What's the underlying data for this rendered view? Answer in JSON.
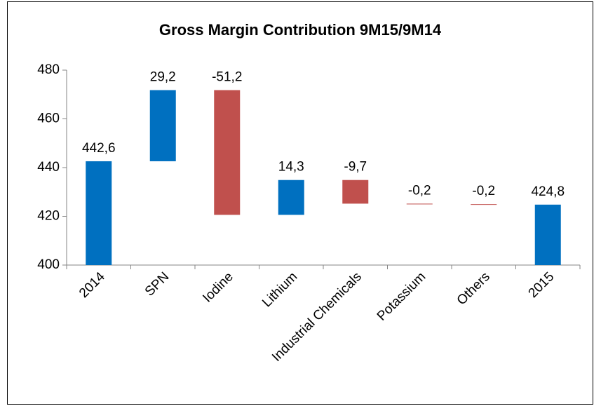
{
  "chart_data": {
    "type": "waterfall",
    "title": "Gross Margin Contribution 9M15/9M14",
    "categories": [
      "2014",
      "SPN",
      "Iodine",
      "Lithium",
      "Industrial Chemicals",
      "Potassium",
      "Others",
      "2015"
    ],
    "values": [
      442.6,
      29.2,
      -51.2,
      14.3,
      -9.7,
      -0.2,
      -0.2,
      424.8
    ],
    "value_labels": [
      "442,6",
      "29,2",
      "-51,2",
      "14,3",
      "-9,7",
      "-0,2",
      "-0,2",
      "424,8"
    ],
    "measure": [
      "absolute",
      "relative",
      "relative",
      "relative",
      "relative",
      "relative",
      "relative",
      "total"
    ],
    "increase_color": "#0070c0",
    "decrease_color": "#c0504d",
    "total_color": "#0070c0",
    "ylim": [
      400,
      480
    ],
    "yticks": [
      400,
      420,
      440,
      460,
      480
    ],
    "grid": false
  }
}
